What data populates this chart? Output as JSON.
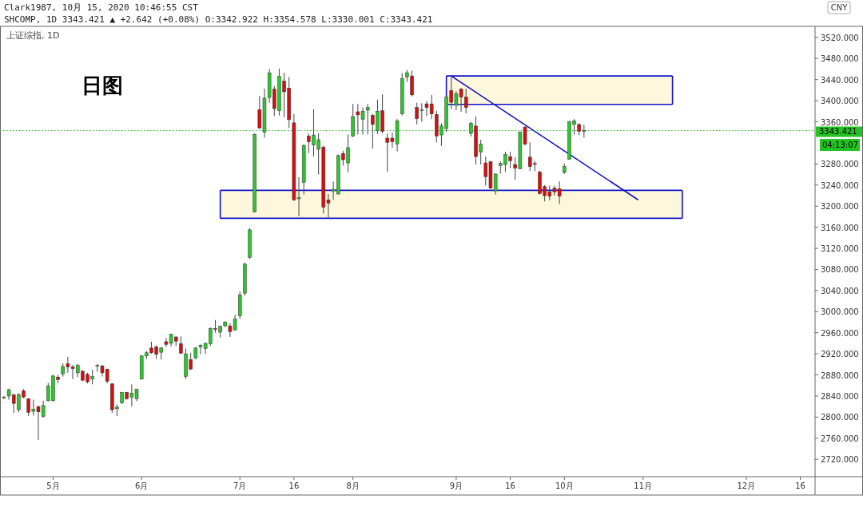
{
  "chart_data": {
    "type": "candlestick",
    "title": "Clark1987, 10月 15, 2020 10:46:55 CST",
    "subtitle": "SHCOMP, 1D 3343.421 ▲ +2.642 (+0.08%) O:3342.922 H:3354.578 L:3330.001 C:3343.421",
    "annotations": [
      "上证综指, 1D",
      "日图",
      "CNY",
      "04:13:07"
    ],
    "categories": [
      null,
      null,
      null,
      null,
      null,
      null,
      null,
      null,
      null,
      null,
      "5月",
      null,
      null,
      null,
      null,
      null,
      null,
      null,
      null,
      null,
      null,
      null,
      null,
      null,
      null,
      null,
      null,
      null,
      "6月",
      null,
      null,
      null,
      null,
      null,
      null,
      null,
      null,
      null,
      null,
      null,
      null,
      null,
      null,
      null,
      null,
      null,
      null,
      null,
      "7月",
      null,
      null,
      null,
      null,
      null,
      null,
      null,
      null,
      null,
      null,
      "16",
      null,
      null,
      null,
      null,
      null,
      null,
      null,
      null,
      null,
      null,
      null,
      "8月",
      null,
      null,
      null,
      null,
      null,
      null,
      null,
      null,
      null,
      null,
      null,
      null,
      null,
      null,
      null,
      null,
      null,
      null,
      null,
      null,
      "9月",
      null,
      null,
      null,
      null,
      null,
      null,
      null,
      null,
      null,
      null,
      "16",
      null,
      null,
      null,
      null,
      null,
      null,
      null,
      null,
      null,
      null,
      "10月",
      null,
      null,
      null,
      null,
      null,
      null,
      null,
      null,
      null,
      null,
      null,
      null,
      null,
      null,
      null,
      "11月",
      null,
      null,
      null,
      null,
      null,
      null,
      null,
      null,
      null,
      null,
      null,
      null,
      null,
      null,
      null,
      null,
      null,
      null,
      null,
      null,
      "12月",
      null,
      null,
      null,
      null,
      null,
      null,
      null,
      null,
      null,
      null,
      "16",
      null,
      null
    ],
    "ohlc": [
      [
        2837,
        2840,
        2834,
        2838
      ],
      [
        2840,
        2854,
        2833,
        2852
      ],
      [
        2842,
        2844,
        2808,
        2826
      ],
      [
        2814,
        2845,
        2809,
        2843
      ],
      [
        2850,
        2853,
        2836,
        2838
      ],
      [
        2835,
        2836,
        2802,
        2809
      ],
      [
        2811,
        2833,
        2803,
        2815
      ],
      [
        2820,
        2821,
        2757,
        2810
      ],
      [
        2801,
        2831,
        2799,
        2822
      ],
      [
        2831,
        2865,
        2830,
        2859
      ],
      [
        2831,
        2880,
        2830,
        2878
      ],
      [
        2876,
        2880,
        2864,
        2871
      ],
      [
        2882,
        2902,
        2877,
        2896
      ],
      [
        2901,
        2914,
        2884,
        2895
      ],
      [
        2895,
        2899,
        2872,
        2892
      ],
      [
        2884,
        2901,
        2876,
        2898
      ],
      [
        2887,
        2889,
        2868,
        2870
      ],
      [
        2881,
        2884,
        2864,
        2867
      ],
      [
        2872,
        2890,
        2862,
        2877
      ],
      [
        2897,
        2901,
        2886,
        2898
      ],
      [
        2897,
        2899,
        2877,
        2884
      ],
      [
        2891,
        2892,
        2864,
        2868
      ],
      [
        2863,
        2864,
        2808,
        2814
      ],
      [
        2816,
        2824,
        2802,
        2819
      ],
      [
        2827,
        2848,
        2825,
        2847
      ],
      [
        2847,
        2848,
        2833,
        2835
      ],
      [
        2838,
        2862,
        2820,
        2845
      ],
      [
        2835,
        2854,
        2830,
        2853
      ],
      [
        2872,
        2917,
        2871,
        2916
      ],
      [
        2916,
        2925,
        2910,
        2922
      ],
      [
        2931,
        2943,
        2920,
        2922
      ],
      [
        2933,
        2936,
        2910,
        2919
      ],
      [
        2923,
        2933,
        2909,
        2931
      ],
      [
        2943,
        2950,
        2933,
        2938
      ],
      [
        2940,
        2958,
        2934,
        2957
      ],
      [
        2952,
        2953,
        2935,
        2944
      ],
      [
        2939,
        2953,
        2920,
        2921
      ],
      [
        2877,
        2930,
        2872,
        2920
      ],
      [
        2909,
        2922,
        2890,
        2891
      ],
      [
        2912,
        2933,
        2910,
        2931
      ],
      [
        2933,
        2938,
        2919,
        2936
      ],
      [
        2930,
        2941,
        2920,
        2940
      ],
      [
        2939,
        2970,
        2935,
        2968
      ],
      [
        2968,
        2984,
        2960,
        2966
      ],
      [
        2961,
        2974,
        2951,
        2972
      ],
      [
        2973,
        2982,
        2971,
        2980
      ],
      [
        2973,
        2978,
        2952,
        2962
      ],
      [
        2965,
        2994,
        2964,
        2986
      ],
      [
        2992,
        3038,
        2986,
        3032
      ],
      [
        3035,
        3093,
        3030,
        3090
      ],
      [
        3103,
        3158,
        3100,
        3155
      ],
      [
        3189,
        3338,
        3188,
        3336
      ],
      [
        3383,
        3409,
        3347,
        3348
      ],
      [
        3340,
        3423,
        3330,
        3405
      ],
      [
        3406,
        3460,
        3396,
        3453
      ],
      [
        3422,
        3428,
        3371,
        3385
      ],
      [
        3381,
        3461,
        3372,
        3446
      ],
      [
        3437,
        3453,
        3369,
        3417
      ],
      [
        3424,
        3445,
        3348,
        3364
      ],
      [
        3358,
        3375,
        3210,
        3212
      ],
      [
        3214,
        3255,
        3181,
        3216
      ],
      [
        3245,
        3318,
        3222,
        3315
      ],
      [
        3333,
        3338,
        3301,
        3322
      ],
      [
        3316,
        3384,
        3294,
        3335
      ],
      [
        3308,
        3338,
        3260,
        3326
      ],
      [
        3312,
        3315,
        3186,
        3198
      ],
      [
        3212,
        3223,
        3178,
        3206
      ],
      [
        3229,
        3247,
        3212,
        3232
      ],
      [
        3223,
        3298,
        3222,
        3296
      ],
      [
        3300,
        3305,
        3277,
        3288
      ],
      [
        3282,
        3336,
        3264,
        3311
      ],
      [
        3333,
        3394,
        3331,
        3370
      ],
      [
        3379,
        3394,
        3336,
        3373
      ],
      [
        3365,
        3387,
        3336,
        3380
      ],
      [
        3382,
        3394,
        3336,
        3387
      ],
      [
        3372,
        3375,
        3309,
        3355
      ],
      [
        3343,
        3402,
        3337,
        3380
      ],
      [
        3381,
        3412,
        3338,
        3342
      ],
      [
        3329,
        3338,
        3265,
        3321
      ],
      [
        3329,
        3340,
        3311,
        3322
      ],
      [
        3318,
        3365,
        3304,
        3362
      ],
      [
        3375,
        3452,
        3372,
        3442
      ],
      [
        3445,
        3458,
        3436,
        3453
      ],
      [
        3447,
        3457,
        3408,
        3411
      ],
      [
        3387,
        3396,
        3355,
        3366
      ],
      [
        3382,
        3395,
        3360,
        3383
      ],
      [
        3394,
        3399,
        3371,
        3387
      ],
      [
        3394,
        3411,
        3365,
        3375
      ],
      [
        3374,
        3381,
        3321,
        3333
      ],
      [
        3335,
        3357,
        3314,
        3352
      ],
      [
        3347,
        3409,
        3341,
        3407
      ],
      [
        3419,
        3445,
        3384,
        3397
      ],
      [
        3391,
        3418,
        3382,
        3413
      ],
      [
        3422,
        3424,
        3379,
        3407
      ],
      [
        3407,
        3423,
        3376,
        3387
      ],
      [
        3338,
        3360,
        3332,
        3357
      ],
      [
        3352,
        3370,
        3279,
        3294
      ],
      [
        3303,
        3326,
        3279,
        3318
      ],
      [
        3282,
        3294,
        3239,
        3256
      ],
      [
        3284,
        3286,
        3233,
        3234
      ],
      [
        3229,
        3262,
        3222,
        3261
      ],
      [
        3277,
        3285,
        3262,
        3281
      ],
      [
        3279,
        3303,
        3265,
        3298
      ],
      [
        3294,
        3303,
        3272,
        3286
      ],
      [
        3279,
        3293,
        3250,
        3272
      ],
      [
        3271,
        3342,
        3270,
        3340
      ],
      [
        3350,
        3352,
        3315,
        3318
      ],
      [
        3293,
        3321,
        3267,
        3275
      ],
      [
        3281,
        3286,
        3266,
        3280
      ],
      [
        3265,
        3267,
        3222,
        3224
      ],
      [
        3237,
        3240,
        3209,
        3220
      ],
      [
        3227,
        3239,
        3211,
        3219
      ],
      [
        3234,
        3239,
        3220,
        3227
      ],
      [
        3233,
        3247,
        3204,
        3219
      ],
      [
        3264,
        3281,
        3261,
        3275
      ],
      [
        3289,
        3362,
        3288,
        3360
      ],
      [
        3355,
        3365,
        3336,
        3362
      ],
      [
        3355,
        3357,
        3335,
        3342
      ],
      [
        3342.922,
        3354.578,
        3330.001,
        3343.421
      ],
      null,
      null,
      null,
      null,
      null,
      null,
      null,
      null,
      null,
      null,
      null,
      null,
      null,
      null,
      null,
      null,
      null,
      null,
      null,
      null,
      null,
      null,
      null,
      null,
      null,
      null,
      null,
      null,
      null,
      null,
      null,
      null,
      null,
      null,
      null,
      null,
      null,
      null,
      null,
      null,
      null,
      null,
      null,
      null,
      null,
      null
    ],
    "series": [
      {
        "type": "line",
        "color": "#1010c8",
        "values": [
          null,
          null,
          null,
          null,
          null,
          null,
          null,
          null,
          null,
          null,
          null,
          null,
          null,
          null,
          null,
          null,
          null,
          null,
          null,
          null,
          null,
          null,
          null,
          null,
          null,
          null,
          null,
          null,
          null,
          null,
          null,
          null,
          null,
          null,
          null,
          null,
          null,
          null,
          null,
          null,
          null,
          null,
          null,
          null,
          null,
          null,
          null,
          null,
          null,
          null,
          null,
          null,
          null,
          null,
          null,
          null,
          null,
          null,
          null,
          null,
          null,
          null,
          null,
          null,
          null,
          null,
          null,
          null,
          null,
          null,
          null,
          null,
          null,
          null,
          null,
          null,
          null,
          null,
          null,
          null,
          null,
          null,
          null,
          null,
          null,
          null,
          null,
          null,
          null,
          null,
          null,
          3447,
          null,
          null,
          null,
          null,
          null,
          null,
          null,
          null,
          null,
          null,
          null,
          null,
          null,
          null,
          null,
          null,
          null,
          null,
          null,
          null,
          null,
          null,
          null,
          null,
          null,
          null,
          null,
          null,
          null,
          null,
          null,
          null,
          null,
          null,
          null,
          null,
          null,
          3212,
          null,
          null,
          null,
          null,
          null,
          null,
          null,
          null,
          null,
          null,
          null,
          null,
          null,
          null,
          null,
          null,
          null,
          null,
          null,
          null,
          null,
          null,
          null,
          null,
          null,
          null,
          null,
          null,
          null,
          null,
          null,
          null,
          null,
          null,
          null
        ]
      },
      {
        "type": "line",
        "color": "#1010c8",
        "values": [
          null,
          null,
          null,
          null,
          null,
          null,
          null,
          null,
          null,
          null,
          null,
          null,
          null,
          null,
          null,
          null,
          null,
          null,
          null,
          null,
          null,
          null,
          null,
          null,
          null,
          null,
          null,
          null,
          null,
          null,
          null,
          null,
          null,
          null,
          null,
          null,
          null,
          null,
          null,
          null,
          null,
          null,
          null,
          null,
          3177,
          null,
          null,
          null,
          null,
          null,
          null,
          null,
          null,
          null,
          null,
          null,
          null,
          null,
          null,
          null,
          null,
          null,
          null,
          null,
          null,
          null,
          null,
          null,
          null,
          null,
          null,
          null,
          null,
          null,
          null,
          null,
          null,
          null,
          null,
          null,
          null,
          null,
          null,
          null,
          null,
          null,
          null,
          null,
          null,
          null,
          null,
          null,
          null,
          null,
          null,
          null,
          null,
          null,
          null,
          null,
          null,
          null,
          null,
          null,
          null,
          null,
          null,
          null,
          null,
          null,
          null,
          null,
          null,
          null,
          null,
          null,
          null,
          null,
          null,
          null,
          null,
          null,
          null,
          null,
          null,
          null,
          null,
          null,
          null,
          null,
          null,
          null,
          null,
          null,
          null,
          null,
          null,
          null,
          3177,
          null,
          null,
          null,
          null,
          null,
          null,
          null,
          null,
          null,
          null,
          null,
          null,
          null,
          null,
          null,
          null,
          null,
          null,
          null,
          null,
          null,
          null,
          null,
          null,
          null,
          null
        ]
      },
      {
        "type": "line",
        "color": "#1010c8",
        "values": [
          null,
          null,
          null,
          null,
          null,
          null,
          null,
          null,
          null,
          null,
          null,
          null,
          null,
          null,
          null,
          null,
          null,
          null,
          null,
          null,
          null,
          null,
          null,
          null,
          null,
          null,
          null,
          null,
          null,
          null,
          null,
          null,
          null,
          null,
          null,
          null,
          null,
          null,
          null,
          null,
          null,
          null,
          null,
          null,
          3230,
          null,
          null,
          null,
          null,
          null,
          null,
          null,
          null,
          null,
          null,
          null,
          null,
          null,
          null,
          null,
          null,
          null,
          null,
          null,
          null,
          null,
          null,
          null,
          null,
          null,
          null,
          null,
          null,
          null,
          null,
          null,
          null,
          null,
          null,
          null,
          null,
          null,
          null,
          null,
          null,
          null,
          null,
          null,
          null,
          null,
          null,
          null,
          null,
          null,
          null,
          null,
          null,
          null,
          null,
          null,
          null,
          null,
          null,
          null,
          null,
          null,
          null,
          null,
          null,
          null,
          null,
          null,
          null,
          null,
          null,
          null,
          null,
          null,
          null,
          null,
          null,
          null,
          null,
          null,
          null,
          null,
          null,
          null,
          null,
          null,
          null,
          null,
          null,
          null,
          null,
          null,
          null,
          null,
          3230,
          null,
          null,
          null,
          null,
          null,
          null,
          null,
          null,
          null,
          null,
          null,
          null,
          null,
          null,
          null,
          null,
          null,
          null,
          null,
          null,
          null,
          null,
          null,
          null,
          null,
          null
        ]
      },
      {
        "type": "line",
        "color": "#1010c8",
        "values": [
          null,
          null,
          null,
          null,
          null,
          null,
          null,
          null,
          null,
          null,
          null,
          null,
          null,
          null,
          null,
          null,
          null,
          null,
          null,
          null,
          null,
          null,
          null,
          null,
          null,
          null,
          null,
          null,
          null,
          null,
          null,
          null,
          null,
          null,
          null,
          null,
          null,
          null,
          null,
          null,
          null,
          null,
          null,
          null,
          null,
          null,
          null,
          null,
          null,
          null,
          null,
          null,
          null,
          null,
          null,
          null,
          null,
          null,
          null,
          null,
          null,
          null,
          null,
          null,
          null,
          null,
          null,
          null,
          null,
          null,
          null,
          null,
          null,
          null,
          null,
          null,
          null,
          null,
          null,
          null,
          null,
          null,
          null,
          null,
          null,
          null,
          null,
          null,
          null,
          null,
          3393,
          null,
          null,
          null,
          null,
          null,
          null,
          null,
          null,
          null,
          null,
          null,
          null,
          null,
          null,
          null,
          null,
          null,
          null,
          null,
          null,
          null,
          null,
          null,
          null,
          null,
          null,
          null,
          null,
          null,
          null,
          null,
          null,
          null,
          null,
          null,
          null,
          null,
          null,
          null,
          null,
          null,
          null,
          null,
          null,
          null,
          3393,
          null,
          null,
          null,
          null,
          null,
          null,
          null,
          null,
          null,
          null,
          null,
          null,
          null,
          null,
          null,
          null,
          null,
          null,
          null,
          null,
          null,
          null,
          null,
          null,
          null,
          null,
          null,
          null
        ]
      },
      {
        "type": "line",
        "color": "#1010c8",
        "values": [
          null,
          null,
          null,
          null,
          null,
          null,
          null,
          null,
          null,
          null,
          null,
          null,
          null,
          null,
          null,
          null,
          null,
          null,
          null,
          null,
          null,
          null,
          null,
          null,
          null,
          null,
          null,
          null,
          null,
          null,
          null,
          null,
          null,
          null,
          null,
          null,
          null,
          null,
          null,
          null,
          null,
          null,
          null,
          null,
          null,
          null,
          null,
          null,
          null,
          null,
          null,
          null,
          null,
          null,
          null,
          null,
          null,
          null,
          null,
          null,
          null,
          null,
          null,
          null,
          null,
          null,
          null,
          null,
          null,
          null,
          null,
          null,
          null,
          null,
          null,
          null,
          null,
          null,
          null,
          null,
          null,
          null,
          null,
          null,
          null,
          null,
          null,
          null,
          null,
          null,
          3447,
          null,
          null,
          null,
          null,
          null,
          null,
          null,
          null,
          null,
          null,
          null,
          null,
          null,
          null,
          null,
          null,
          null,
          null,
          null,
          null,
          null,
          null,
          null,
          null,
          null,
          null,
          null,
          null,
          null,
          null,
          null,
          null,
          null,
          null,
          null,
          null,
          null,
          null,
          null,
          null,
          null,
          null,
          null,
          null,
          null,
          3447,
          null,
          null,
          null,
          null,
          null,
          null,
          null,
          null,
          null,
          null,
          null,
          null,
          null,
          null,
          null,
          null,
          null,
          null,
          null,
          null,
          null,
          null,
          null,
          null,
          null,
          null,
          null,
          null
        ]
      }
    ],
    "ylim": [
      2687,
      3541
    ],
    "yticks": [
      {
        "value": 2720,
        "label": "2720.000"
      },
      {
        "value": 2760,
        "label": "2760.000"
      },
      {
        "value": 2800,
        "label": "2800.000"
      },
      {
        "value": 2840,
        "label": "2840.000"
      },
      {
        "value": 2880,
        "label": "2880.000"
      },
      {
        "value": 2920,
        "label": "2920.000"
      },
      {
        "value": 2960,
        "label": "2960.000"
      },
      {
        "value": 3000,
        "label": "3000.000"
      },
      {
        "value": 3040,
        "label": "3040.000"
      },
      {
        "value": 3080,
        "label": "3080.000"
      },
      {
        "value": 3120,
        "label": "3120.000"
      },
      {
        "value": 3160,
        "label": "3160.000"
      },
      {
        "value": 3200,
        "label": "3200.000"
      },
      {
        "value": 3240,
        "label": "3240.000"
      },
      {
        "value": 3280,
        "label": "3280.000"
      },
      {
        "value": 3360,
        "label": "3360.000"
      },
      {
        "value": 3400,
        "label": "3400.000"
      },
      {
        "value": 3440,
        "label": "3440.000"
      },
      {
        "value": 3480,
        "label": "3480.000"
      },
      {
        "value": 3520,
        "label": "3520.000"
      }
    ],
    "ref_lines": [
      {
        "axis": "y",
        "value": 3343.421,
        "label": "3343.421",
        "color": "#22c322",
        "line_style": "dotted"
      }
    ]
  }
}
